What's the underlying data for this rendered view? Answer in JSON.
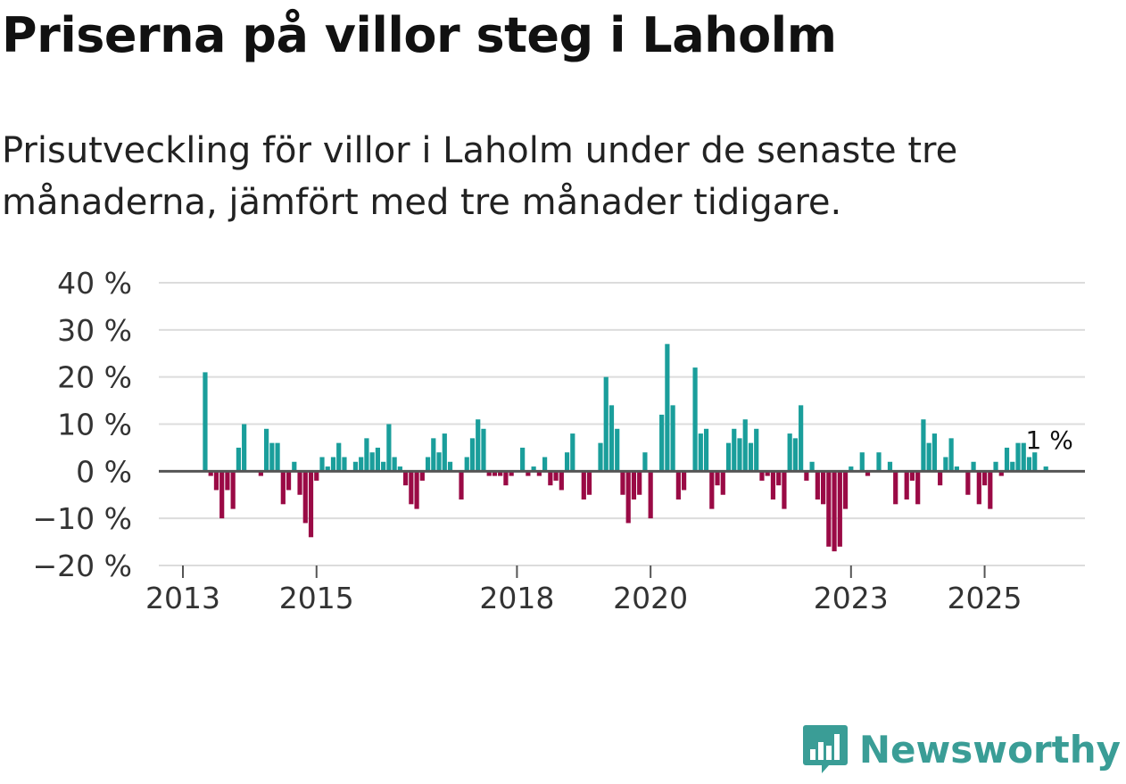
{
  "header": {
    "title": "Priserna på villor steg i Laholm",
    "subtitle": "Prisutveckling för villor i Laholm under de senaste tre månaderna, jämfört med tre månader tidigare."
  },
  "brand": {
    "name": "Newsworthy",
    "icon": "newsworthy-logo-icon",
    "color": "#3a9d96"
  },
  "colors": {
    "positive": "#1a9e9b",
    "negative": "#9a0a45",
    "grid": "#dcdcdc",
    "zero": "#555555"
  },
  "chart_data": {
    "type": "bar",
    "title": "Priserna på villor steg i Laholm",
    "xlabel": "",
    "ylabel": "",
    "ylim": [
      -20,
      40
    ],
    "yticks": [
      40,
      30,
      20,
      10,
      0,
      -10,
      -20
    ],
    "ytick_labels": [
      "40 %",
      "30 %",
      "20 %",
      "10 %",
      "0 %",
      "−10 %",
      "−20 %"
    ],
    "xtick_labels": [
      "2013",
      "2015",
      "2018",
      "2020",
      "2023",
      "2025"
    ],
    "xtick_months": [
      0,
      24,
      60,
      84,
      120,
      144
    ],
    "x_start": "2013-01",
    "end_label": "1 %",
    "values": [
      null,
      null,
      null,
      null,
      21,
      -1,
      -4,
      -10,
      -4,
      -8,
      5,
      10,
      null,
      null,
      -1,
      9,
      6,
      6,
      -7,
      -4,
      2,
      -5,
      -11,
      -14,
      -2,
      3,
      1,
      3,
      6,
      3,
      null,
      2,
      3,
      7,
      4,
      5,
      2,
      10,
      3,
      1,
      -3,
      -7,
      -8,
      -2,
      3,
      7,
      4,
      8,
      2,
      null,
      -6,
      3,
      7,
      11,
      9,
      -1,
      -1,
      -1,
      -3,
      -1,
      null,
      5,
      -1,
      1,
      -1,
      3,
      -3,
      -2,
      -4,
      4,
      8,
      null,
      -6,
      -5,
      null,
      6,
      20,
      14,
      9,
      -5,
      -11,
      -6,
      -5,
      4,
      -10,
      null,
      12,
      27,
      14,
      -6,
      -4,
      null,
      22,
      8,
      9,
      -8,
      -3,
      -5,
      6,
      9,
      7,
      11,
      6,
      9,
      -2,
      -1,
      -6,
      -3,
      -8,
      8,
      7,
      14,
      -2,
      2,
      -6,
      -7,
      -16,
      -17,
      -16,
      -8,
      1,
      null,
      4,
      -1,
      null,
      4,
      null,
      2,
      -7,
      null,
      -6,
      -2,
      -7,
      11,
      6,
      8,
      -3,
      3,
      7,
      1,
      null,
      -5,
      2,
      -7,
      -3,
      -8,
      2,
      -1,
      5,
      2,
      6,
      6,
      3,
      4,
      null,
      1
    ]
  }
}
